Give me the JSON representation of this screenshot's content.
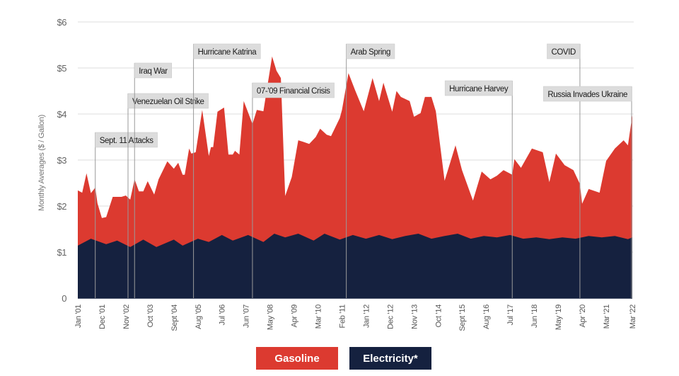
{
  "chart_data": {
    "type": "area",
    "title": "",
    "ylabel": "Monthly Averages ($ / Gallon)",
    "xlabel": "",
    "ylim": [
      0,
      6
    ],
    "xlim": [
      "2001-01",
      "2022-03"
    ],
    "grid": true,
    "legend_position": "bottom",
    "y_ticks": [
      {
        "value": 0,
        "label": "0"
      },
      {
        "value": 1,
        "label": "$1"
      },
      {
        "value": 2,
        "label": "$2"
      },
      {
        "value": 3,
        "label": "$3"
      },
      {
        "value": 4,
        "label": "$4"
      },
      {
        "value": 5,
        "label": "$5"
      },
      {
        "value": 6,
        "label": "$6"
      }
    ],
    "x_ticks": [
      {
        "date": "2001-01",
        "label": "Jan '01"
      },
      {
        "date": "2001-12",
        "label": "Dec '01"
      },
      {
        "date": "2002-11",
        "label": "Nov '02"
      },
      {
        "date": "2003-10",
        "label": "Oct '03"
      },
      {
        "date": "2004-09",
        "label": "Sept '04"
      },
      {
        "date": "2005-08",
        "label": "Aug '05"
      },
      {
        "date": "2006-07",
        "label": "Jul '06"
      },
      {
        "date": "2007-06",
        "label": "Jun '07"
      },
      {
        "date": "2008-05",
        "label": "May '08"
      },
      {
        "date": "2009-04",
        "label": "Apr '09"
      },
      {
        "date": "2010-03",
        "label": "Mar '10"
      },
      {
        "date": "2011-02",
        "label": "Feb '11"
      },
      {
        "date": "2012-01",
        "label": "Jan '12"
      },
      {
        "date": "2012-12",
        "label": "Dec '12"
      },
      {
        "date": "2013-11",
        "label": "Nov '13"
      },
      {
        "date": "2014-10",
        "label": "Oct '14"
      },
      {
        "date": "2015-09",
        "label": "Sept '15"
      },
      {
        "date": "2016-08",
        "label": "Aug '16"
      },
      {
        "date": "2017-07",
        "label": "Jul '17"
      },
      {
        "date": "2018-06",
        "label": "Jun '18"
      },
      {
        "date": "2019-05",
        "label": "May '19"
      },
      {
        "date": "2020-04",
        "label": "Apr '20"
      },
      {
        "date": "2021-03",
        "label": "Mar '21"
      },
      {
        "date": "2022-03",
        "label": "Mar '22"
      }
    ],
    "series": [
      {
        "name": "Gasoline",
        "color": "#dc3a30",
        "points": [
          [
            "2001-01",
            2.34
          ],
          [
            "2001-03",
            2.29
          ],
          [
            "2001-05",
            2.71
          ],
          [
            "2001-07",
            2.28
          ],
          [
            "2001-09",
            2.4
          ],
          [
            "2001-10",
            2.06
          ],
          [
            "2001-12",
            1.74
          ],
          [
            "2002-02",
            1.76
          ],
          [
            "2002-05",
            2.2
          ],
          [
            "2002-09",
            2.2
          ],
          [
            "2002-11",
            2.23
          ],
          [
            "2003-01",
            2.14
          ],
          [
            "2003-03",
            2.58
          ],
          [
            "2003-05",
            2.32
          ],
          [
            "2003-07",
            2.32
          ],
          [
            "2003-09",
            2.54
          ],
          [
            "2003-12",
            2.25
          ],
          [
            "2004-02",
            2.58
          ],
          [
            "2004-06",
            2.97
          ],
          [
            "2004-09",
            2.81
          ],
          [
            "2004-11",
            2.94
          ],
          [
            "2005-01",
            2.68
          ],
          [
            "2005-02",
            2.68
          ],
          [
            "2005-04",
            3.25
          ],
          [
            "2005-05",
            3.14
          ],
          [
            "2005-07",
            3.17
          ],
          [
            "2005-10",
            4.09
          ],
          [
            "2006-01",
            3.09
          ],
          [
            "2006-02",
            3.28
          ],
          [
            "2006-03",
            3.28
          ],
          [
            "2006-05",
            4.05
          ],
          [
            "2006-08",
            4.14
          ],
          [
            "2006-10",
            3.12
          ],
          [
            "2006-12",
            3.12
          ],
          [
            "2007-01",
            3.2
          ],
          [
            "2007-03",
            3.12
          ],
          [
            "2007-05",
            4.28
          ],
          [
            "2007-08",
            3.91
          ],
          [
            "2007-09",
            3.78
          ],
          [
            "2007-11",
            4.09
          ],
          [
            "2008-02",
            4.06
          ],
          [
            "2008-06",
            5.25
          ],
          [
            "2008-08",
            4.94
          ],
          [
            "2008-10",
            4.78
          ],
          [
            "2008-12",
            2.22
          ],
          [
            "2009-03",
            2.63
          ],
          [
            "2009-06",
            3.43
          ],
          [
            "2009-08",
            3.4
          ],
          [
            "2009-11",
            3.35
          ],
          [
            "2010-02",
            3.5
          ],
          [
            "2010-04",
            3.68
          ],
          [
            "2010-07",
            3.55
          ],
          [
            "2010-09",
            3.52
          ],
          [
            "2011-01",
            3.91
          ],
          [
            "2011-02",
            4.09
          ],
          [
            "2011-05",
            4.89
          ],
          [
            "2011-08",
            4.52
          ],
          [
            "2011-12",
            4.06
          ],
          [
            "2012-04",
            4.78
          ],
          [
            "2012-07",
            4.28
          ],
          [
            "2012-09",
            4.68
          ],
          [
            "2013-01",
            4.05
          ],
          [
            "2013-03",
            4.5
          ],
          [
            "2013-05",
            4.37
          ],
          [
            "2013-09",
            4.28
          ],
          [
            "2013-11",
            3.94
          ],
          [
            "2014-02",
            4.02
          ],
          [
            "2014-04",
            4.37
          ],
          [
            "2014-07",
            4.37
          ],
          [
            "2014-09",
            4.06
          ],
          [
            "2015-01",
            2.55
          ],
          [
            "2015-06",
            3.32
          ],
          [
            "2015-09",
            2.78
          ],
          [
            "2016-02",
            2.12
          ],
          [
            "2016-06",
            2.75
          ],
          [
            "2016-10",
            2.58
          ],
          [
            "2017-01",
            2.66
          ],
          [
            "2017-04",
            2.78
          ],
          [
            "2017-08",
            2.68
          ],
          [
            "2017-09",
            3.02
          ],
          [
            "2017-12",
            2.83
          ],
          [
            "2018-05",
            3.25
          ],
          [
            "2018-10",
            3.17
          ],
          [
            "2019-01",
            2.52
          ],
          [
            "2019-04",
            3.14
          ],
          [
            "2019-08",
            2.89
          ],
          [
            "2019-12",
            2.78
          ],
          [
            "2020-03",
            2.48
          ],
          [
            "2020-04",
            2.05
          ],
          [
            "2020-07",
            2.37
          ],
          [
            "2020-12",
            2.29
          ],
          [
            "2021-03",
            2.98
          ],
          [
            "2021-07",
            3.25
          ],
          [
            "2021-11",
            3.43
          ],
          [
            "2022-01",
            3.32
          ],
          [
            "2022-03",
            3.97
          ]
        ]
      },
      {
        "name": "Electricity*",
        "color": "#15213f",
        "points": [
          [
            "2001-01",
            1.14
          ],
          [
            "2001-07",
            1.29
          ],
          [
            "2002-02",
            1.17
          ],
          [
            "2002-07",
            1.25
          ],
          [
            "2003-01",
            1.11
          ],
          [
            "2003-07",
            1.27
          ],
          [
            "2004-01",
            1.11
          ],
          [
            "2004-09",
            1.27
          ],
          [
            "2005-01",
            1.14
          ],
          [
            "2005-08",
            1.29
          ],
          [
            "2006-01",
            1.22
          ],
          [
            "2006-07",
            1.37
          ],
          [
            "2006-12",
            1.25
          ],
          [
            "2007-07",
            1.37
          ],
          [
            "2008-02",
            1.22
          ],
          [
            "2008-07",
            1.4
          ],
          [
            "2008-12",
            1.32
          ],
          [
            "2009-06",
            1.4
          ],
          [
            "2010-01",
            1.25
          ],
          [
            "2010-06",
            1.4
          ],
          [
            "2011-01",
            1.27
          ],
          [
            "2011-07",
            1.37
          ],
          [
            "2012-01",
            1.29
          ],
          [
            "2012-07",
            1.37
          ],
          [
            "2013-01",
            1.28
          ],
          [
            "2013-07",
            1.35
          ],
          [
            "2014-01",
            1.4
          ],
          [
            "2014-07",
            1.29
          ],
          [
            "2015-01",
            1.35
          ],
          [
            "2015-07",
            1.4
          ],
          [
            "2016-01",
            1.29
          ],
          [
            "2016-07",
            1.35
          ],
          [
            "2017-01",
            1.32
          ],
          [
            "2017-07",
            1.37
          ],
          [
            "2018-01",
            1.29
          ],
          [
            "2018-07",
            1.32
          ],
          [
            "2019-01",
            1.28
          ],
          [
            "2019-07",
            1.32
          ],
          [
            "2020-01",
            1.29
          ],
          [
            "2020-07",
            1.35
          ],
          [
            "2021-01",
            1.32
          ],
          [
            "2021-07",
            1.35
          ],
          [
            "2022-01",
            1.28
          ],
          [
            "2022-03",
            1.32
          ]
        ]
      }
    ],
    "annotations": [
      {
        "date": "2001-09",
        "label": "Sept. 11 Attacks"
      },
      {
        "date": "2002-12",
        "label": "Venezuelan Oil Strike"
      },
      {
        "date": "2003-03",
        "label": "Iraq War"
      },
      {
        "date": "2005-06",
        "label": "Hurricane Katrina"
      },
      {
        "date": "2007-09",
        "label": "07-'09 Financial Crisis"
      },
      {
        "date": "2011-04",
        "label": "Arab Spring"
      },
      {
        "date": "2017-08",
        "label": "Hurricane Harvey"
      },
      {
        "date": "2020-03",
        "label": "COVID"
      },
      {
        "date": "2022-03",
        "label": "Russia Invades Ukraine"
      }
    ]
  },
  "legend": {
    "gasoline": "Gasoline",
    "electricity": "Electricity*"
  }
}
